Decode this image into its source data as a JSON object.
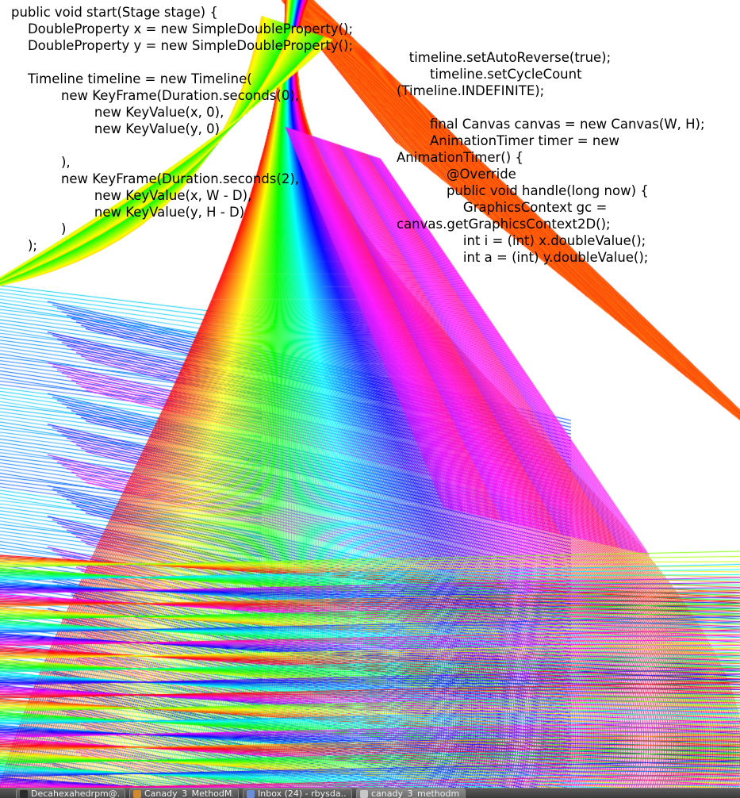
{
  "code": {
    "left_lines": [
      "public void start(Stage stage) {",
      "    DoubleProperty x = new SimpleDoubleProperty();",
      "    DoubleProperty y = new SimpleDoubleProperty();",
      "",
      "    Timeline timeline = new Timeline(",
      "            new KeyFrame(Duration.seconds(0),",
      "                    new KeyValue(x, 0),",
      "                    new KeyValue(y, 0)",
      "",
      "            ),",
      "            new KeyFrame(Duration.seconds(2),",
      "                    new KeyValue(x, W - D),",
      "                    new KeyValue(y, H - D)",
      "            )",
      "    );"
    ],
    "right_lines": [
      "   timeline.setAutoReverse(true);",
      "        timeline.setCycleCount",
      "(Timeline.INDEFINITE);",
      "",
      "        final Canvas canvas = new Canvas(W, H);",
      "        AnimationTimer timer = new",
      "AnimationTimer() {",
      "            @Override",
      "            public void handle(long now) {",
      "                GraphicsContext gc =",
      "canvas.getGraphicsContext2D();",
      "                int i = (int) x.doubleValue();",
      "                int a = (int) y.doubleValue();"
    ]
  },
  "taskbar": {
    "items": [
      {
        "label": "Decahexahedrpm@...",
        "icon": "terminal-icon",
        "icon_color": "#2b2b2b",
        "active": false
      },
      {
        "label": "Canady_3_MethodM...",
        "icon": "ide-icon",
        "icon_color": "#d28a2e",
        "active": false
      },
      {
        "label": "Inbox (24) - rbysda...",
        "icon": "mail-icon",
        "icon_color": "#6a8fd8",
        "active": false
      },
      {
        "label": "canady_3_methodm...",
        "icon": "window-icon",
        "icon_color": "#c8c8c8",
        "active": true
      }
    ]
  },
  "colors": {
    "background": "#ffffff",
    "text": "#000000",
    "taskbar": "#4a4a4a"
  }
}
